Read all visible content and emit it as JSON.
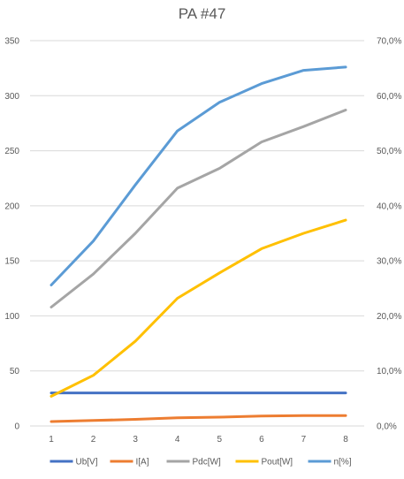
{
  "chart_data": {
    "type": "line",
    "title": "PA #47",
    "xlabel": "",
    "ylabel": "",
    "categories": [
      "1",
      "2",
      "3",
      "4",
      "5",
      "6",
      "7",
      "8"
    ],
    "y_left": {
      "ylim": [
        0,
        350
      ],
      "ticks": [
        0,
        50,
        100,
        150,
        200,
        250,
        300,
        350
      ],
      "tick_labels": [
        "0",
        "50",
        "100",
        "150",
        "200",
        "250",
        "300",
        "350"
      ]
    },
    "y_right": {
      "ylim": [
        0,
        70
      ],
      "ticks": [
        0,
        10,
        20,
        30,
        40,
        50,
        60,
        70
      ],
      "tick_labels": [
        "0,0%",
        "10,0%",
        "20,0%",
        "30,0%",
        "40,0%",
        "50,0%",
        "60,0%",
        "70,0%"
      ]
    },
    "grid": true,
    "legend_position": "bottom",
    "series": [
      {
        "name": "Ub[V]",
        "axis": "left",
        "color": "#4472C4",
        "values": [
          30,
          30,
          30,
          30,
          30,
          30,
          30,
          30
        ]
      },
      {
        "name": "I[A]",
        "axis": "left",
        "color": "#ED7D31",
        "values": [
          4,
          5,
          6,
          7.5,
          8,
          9,
          9.5,
          9.5
        ]
      },
      {
        "name": "Pdc[W]",
        "axis": "left",
        "color": "#A5A5A5",
        "values": [
          108,
          138,
          175,
          216,
          234,
          258,
          272,
          287
        ]
      },
      {
        "name": "Pout[W]",
        "axis": "left",
        "color": "#FFC000",
        "values": [
          27,
          46,
          77,
          116,
          139,
          161,
          175,
          187
        ]
      },
      {
        "name": "n[%]",
        "axis": "right",
        "color": "#5B9BD5",
        "values": [
          25.6,
          33.6,
          43.8,
          53.6,
          58.8,
          62.2,
          64.6,
          65.2
        ]
      }
    ]
  }
}
